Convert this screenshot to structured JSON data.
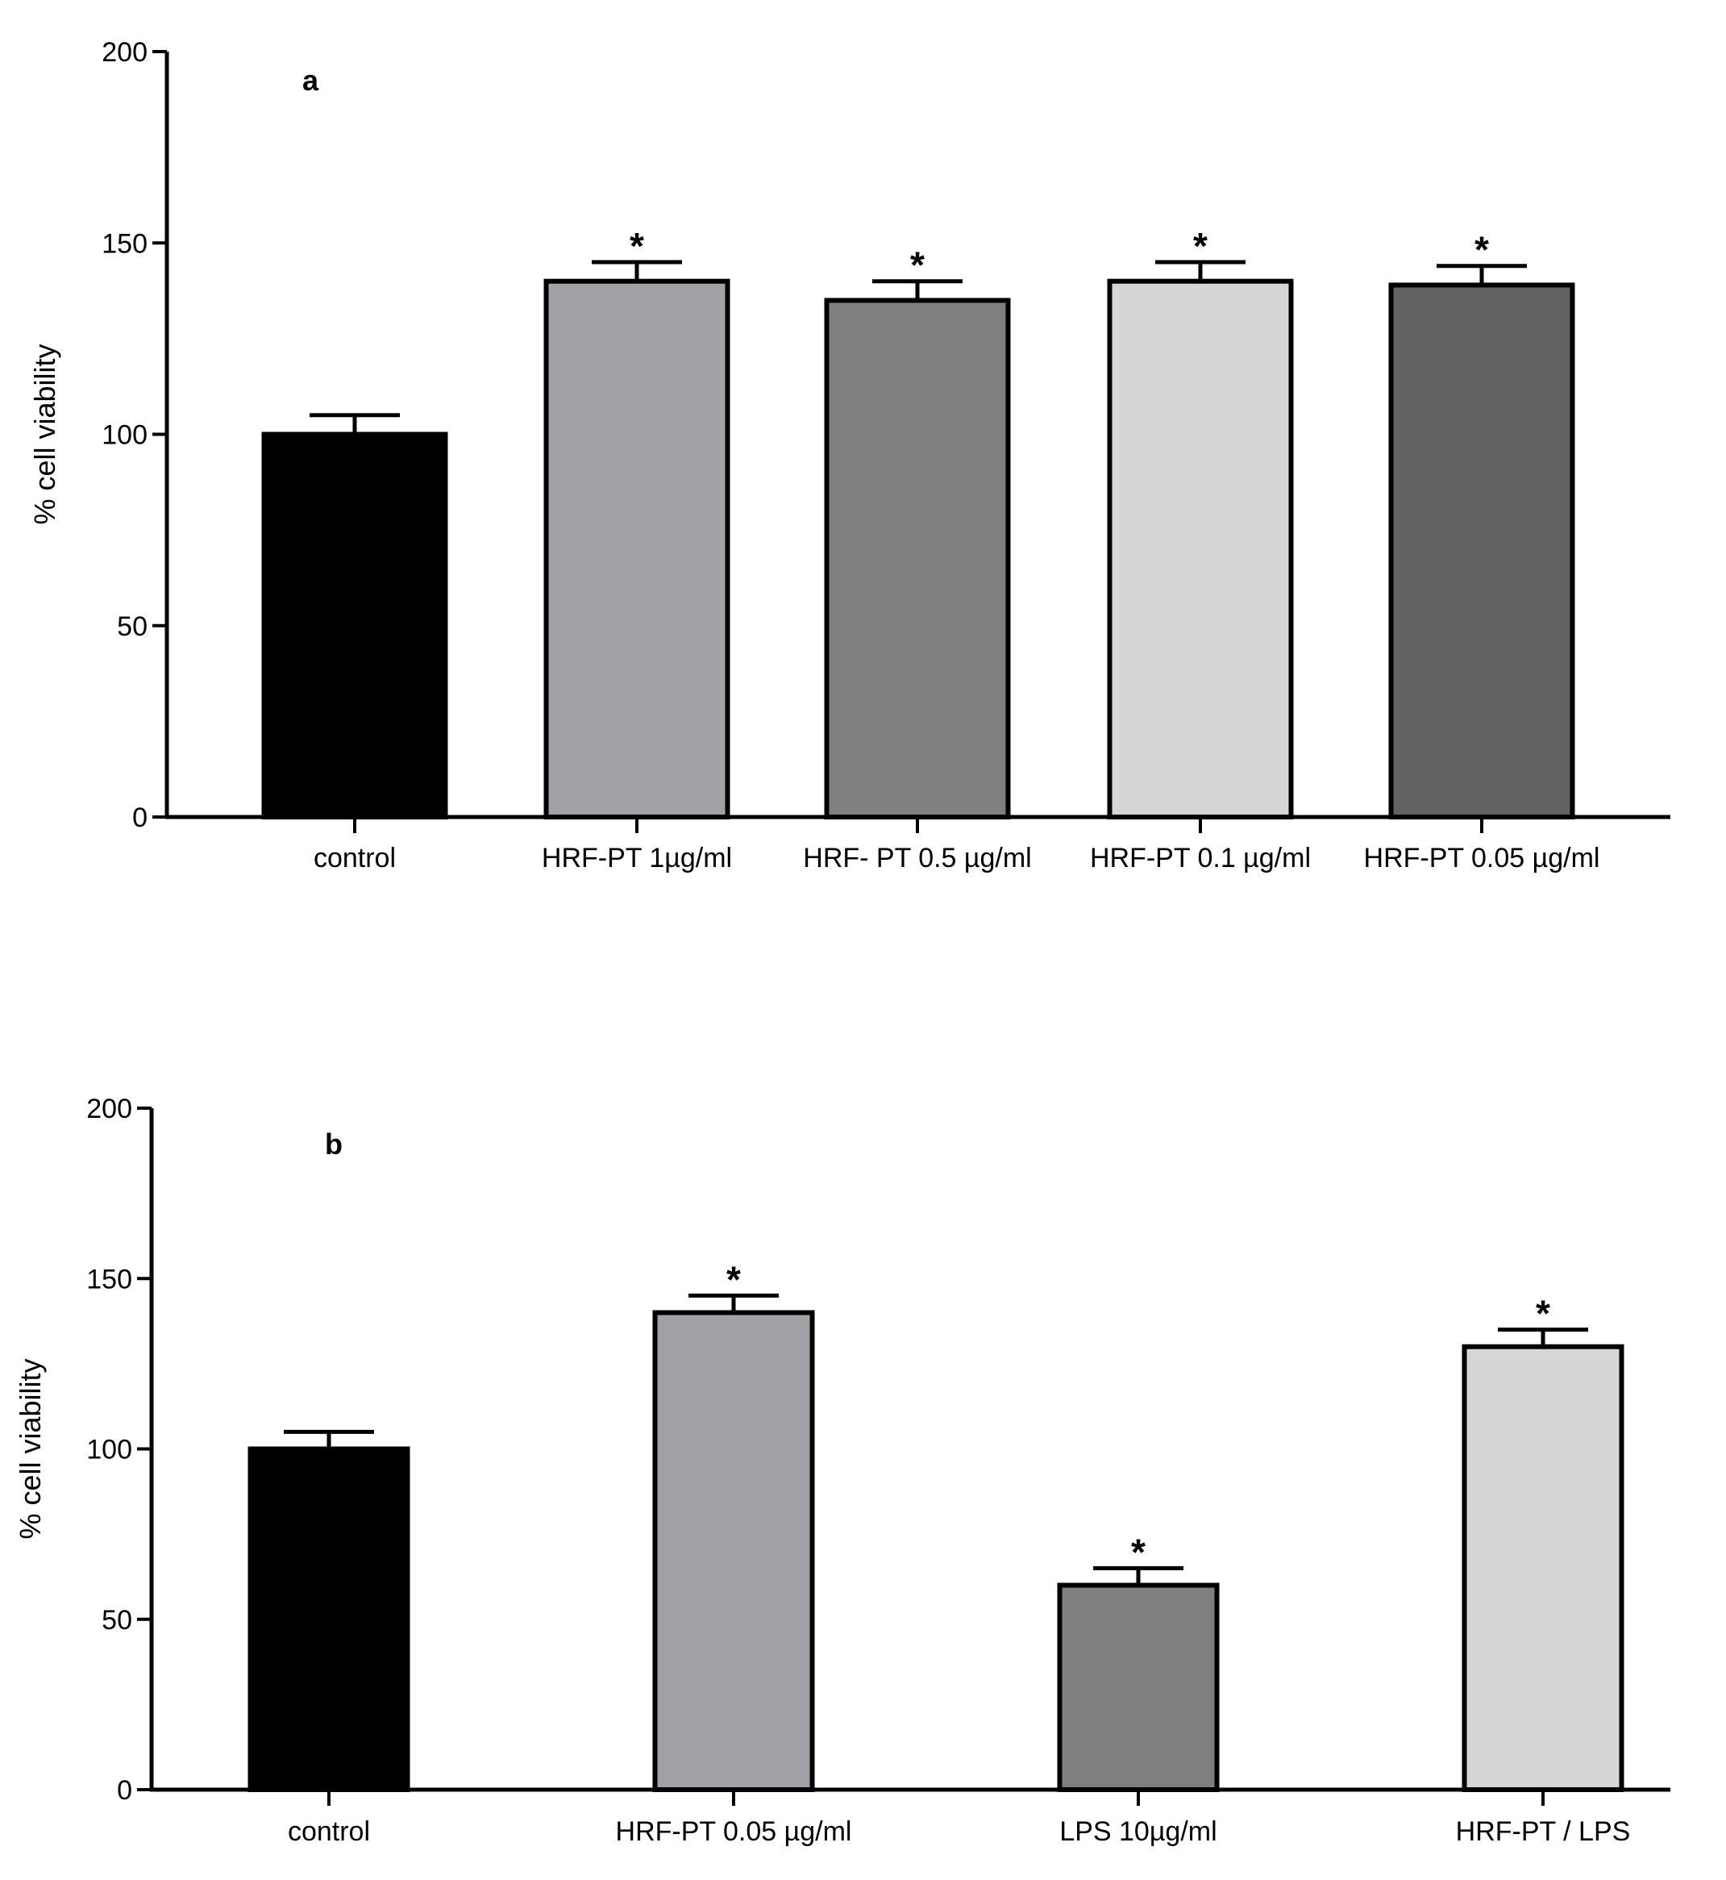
{
  "chart_data": [
    {
      "type": "bar",
      "panel_label": "a",
      "ylabel": "% cell viability",
      "ylim": [
        0,
        200
      ],
      "yticks": [
        0,
        50,
        100,
        150,
        200
      ],
      "categories": [
        "control",
        "HRF-PT 1µg/ml",
        "HRF- PT 0.5 µg/ml",
        "HRF-PT 0.1 µg/ml",
        "HRF-PT 0.05 µg/ml"
      ],
      "values": [
        100,
        140,
        135,
        140,
        139
      ],
      "errors": [
        5,
        5,
        5,
        5,
        5
      ],
      "significance": [
        "",
        "*",
        "*",
        "*",
        "*"
      ],
      "colors": [
        "#000000",
        "#a2a2a6",
        "#7f7f7f",
        "#d6d6d6",
        "#626262"
      ]
    },
    {
      "type": "bar",
      "panel_label": "b",
      "ylabel": "% cell viability",
      "ylim": [
        0,
        200
      ],
      "yticks": [
        0,
        50,
        100,
        150,
        200
      ],
      "categories": [
        "control",
        "HRF-PT 0.05 µg/ml",
        "LPS 10µg/ml",
        "HRF-PT / LPS"
      ],
      "values": [
        100,
        140,
        60,
        130
      ],
      "errors": [
        5,
        5,
        5,
        5
      ],
      "significance": [
        "",
        "*",
        "*",
        "*"
      ],
      "colors": [
        "#000000",
        "#a2a2a6",
        "#7f7f7f",
        "#d6d6d6"
      ]
    }
  ]
}
